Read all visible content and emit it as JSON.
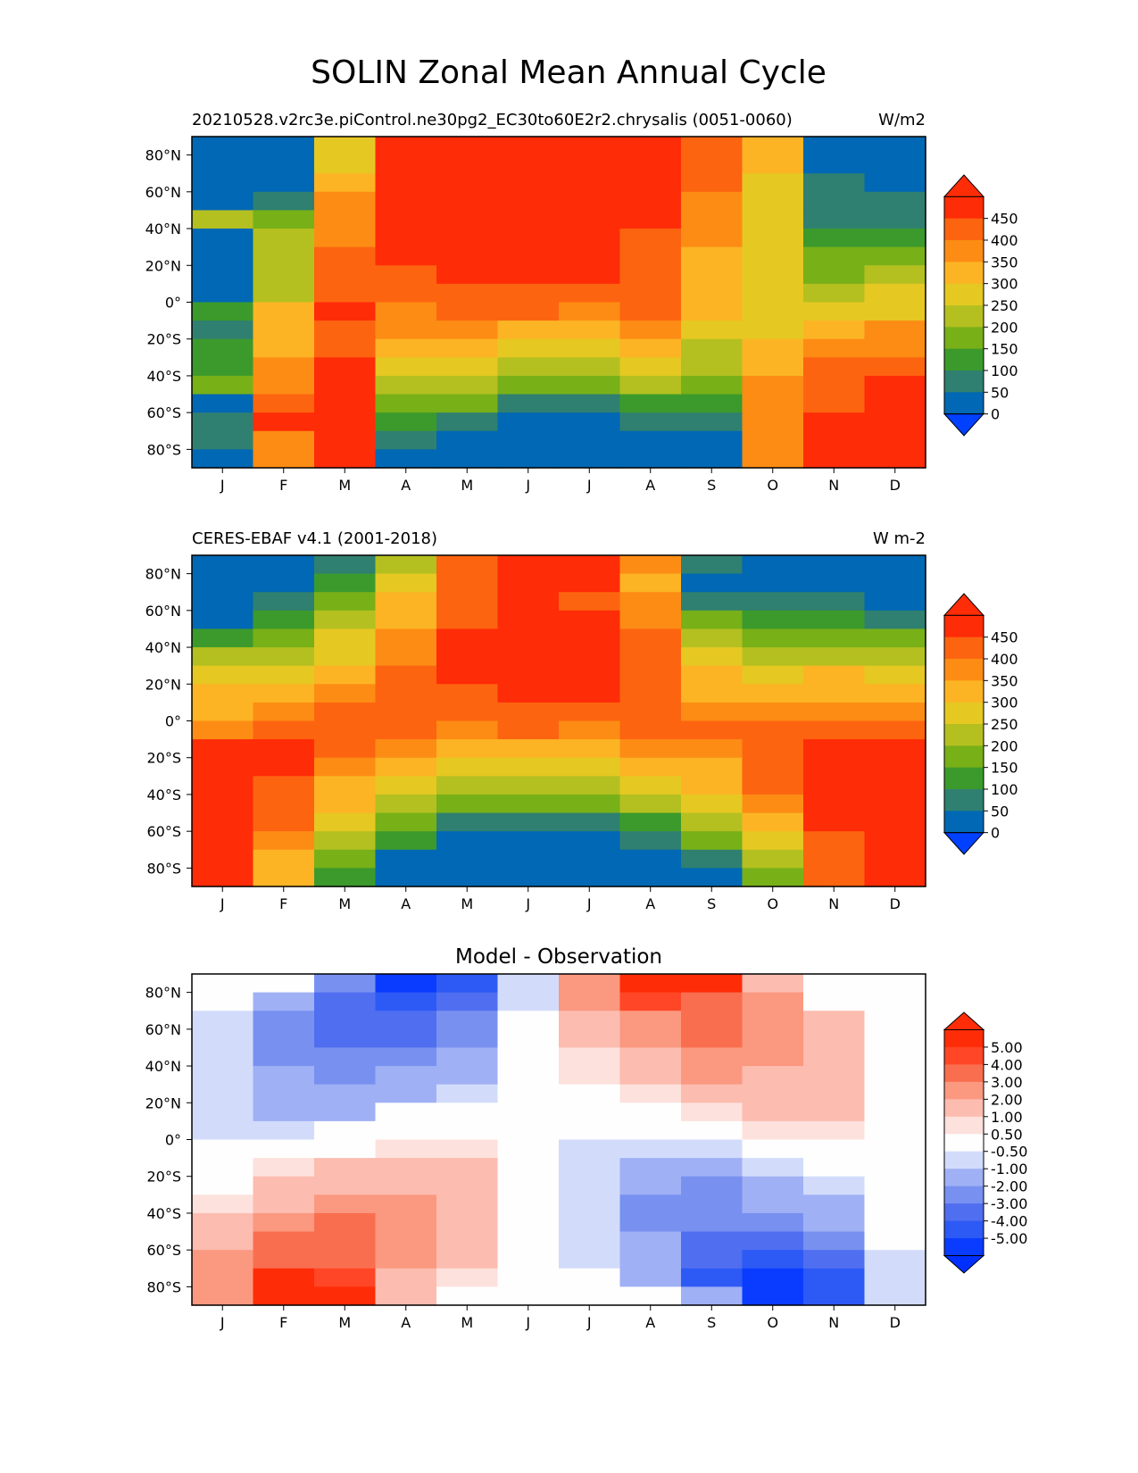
{
  "figure_title": "SOLIN Zonal Mean Annual Cycle",
  "chart_data": [
    {
      "type": "heatmap",
      "title": "",
      "left_title": "20210528.v2rc3e.piControl.ne30pg2_EC30to60E2r2.chrysalis (0051-0060)",
      "right_title": "W/m2",
      "x_ticks": [
        "J",
        "F",
        "M",
        "A",
        "M",
        "J",
        "J",
        "A",
        "S",
        "O",
        "N",
        "D"
      ],
      "y_ticks": [
        "80°N",
        "60°N",
        "40°N",
        "20°N",
        "0°",
        "20°S",
        "40°S",
        "60°S",
        "80°S"
      ],
      "y_tick_values": [
        80,
        60,
        40,
        20,
        0,
        -20,
        -40,
        -60,
        -80
      ],
      "ylim": [
        -90,
        90
      ],
      "colorbar": {
        "levels": [
          0,
          50,
          100,
          150,
          200,
          250,
          300,
          350,
          400,
          450,
          500
        ],
        "tick_labels": [
          "0",
          "50",
          "100",
          "150",
          "200",
          "250",
          "300",
          "350",
          "400",
          "450"
        ],
        "tick_values": [
          0,
          50,
          100,
          150,
          200,
          250,
          300,
          350,
          400,
          450
        ],
        "colors": [
          "#0068b4",
          "#2f8070",
          "#3c9a2c",
          "#78b018",
          "#b4c020",
          "#e6c822",
          "#fcb424",
          "#fd8c14",
          "#fd6410",
          "#ff2c08"
        ],
        "under_color": "#0040ff",
        "over_color": "#ff2c08",
        "extend": "both"
      },
      "values_by_month_lat": {
        "latitudes": [
          85,
          75,
          65,
          55,
          45,
          35,
          25,
          15,
          5,
          -5,
          -15,
          -25,
          -35,
          -45,
          -55,
          -65,
          -75,
          -85
        ],
        "data": [
          [
            0,
            0,
            0,
            35,
            240,
            24,
            0,
            0,
            0,
            110,
            60,
            140,
            100,
            180,
            45,
            60,
            80,
            30
          ],
          [
            0,
            0,
            0,
            90,
            180,
            210,
            220,
            240,
            230,
            320,
            300,
            330,
            370,
            380,
            410,
            470,
            390,
            350
          ],
          [
            260,
            280,
            310,
            380,
            370,
            390,
            400,
            420,
            430,
            460,
            440,
            440,
            470,
            470,
            480,
            480,
            480,
            490
          ],
          [
            480,
            470,
            460,
            460,
            470,
            480,
            470,
            440,
            420,
            390,
            360,
            310,
            280,
            240,
            190,
            130,
            70,
            10
          ],
          [
            480,
            480,
            480,
            480,
            490,
            490,
            480,
            460,
            430,
            420,
            380,
            340,
            290,
            230,
            170,
            80,
            10,
            0
          ],
          [
            500,
            500,
            480,
            480,
            490,
            480,
            470,
            460,
            440,
            400,
            340,
            290,
            230,
            160,
            90,
            0,
            0,
            0
          ],
          [
            500,
            500,
            490,
            490,
            490,
            480,
            460,
            450,
            420,
            390,
            340,
            280,
            220,
            150,
            80,
            0,
            0,
            0
          ],
          [
            480,
            480,
            470,
            460,
            450,
            440,
            440,
            440,
            430,
            400,
            360,
            320,
            260,
            200,
            130,
            60,
            0,
            0
          ],
          [
            440,
            440,
            400,
            380,
            360,
            360,
            340,
            330,
            320,
            310,
            290,
            230,
            200,
            160,
            110,
            55,
            20,
            0
          ],
          [
            310,
            300,
            290,
            280,
            270,
            260,
            250,
            260,
            270,
            280,
            290,
            310,
            340,
            350,
            360,
            370,
            380,
            370
          ],
          [
            30,
            30,
            60,
            60,
            90,
            120,
            150,
            180,
            220,
            270,
            320,
            380,
            400,
            420,
            440,
            460,
            480,
            480
          ],
          [
            0,
            0,
            0,
            60,
            90,
            130,
            160,
            210,
            250,
            290,
            350,
            390,
            420,
            450,
            480,
            500,
            500,
            520
          ]
        ]
      }
    },
    {
      "type": "heatmap",
      "title": "",
      "left_title": "CERES-EBAF v4.1 (2001-2018)",
      "right_title": "W m-2",
      "x_ticks": [
        "J",
        "F",
        "M",
        "A",
        "M",
        "J",
        "J",
        "A",
        "S",
        "O",
        "N",
        "D"
      ],
      "y_ticks": [
        "80°N",
        "60°N",
        "40°N",
        "20°N",
        "0°",
        "20°S",
        "40°S",
        "60°S",
        "80°S"
      ],
      "y_tick_values": [
        80,
        60,
        40,
        20,
        0,
        -20,
        -40,
        -60,
        -80
      ],
      "ylim": [
        -90,
        90
      ],
      "colorbar": {
        "levels": [
          0,
          50,
          100,
          150,
          200,
          250,
          300,
          350,
          400,
          450,
          500
        ],
        "tick_labels": [
          "0",
          "50",
          "100",
          "150",
          "200",
          "250",
          "300",
          "350",
          "400",
          "450"
        ],
        "tick_values": [
          0,
          50,
          100,
          150,
          200,
          250,
          300,
          350,
          400,
          450
        ],
        "colors": [
          "#0068b4",
          "#2f8070",
          "#3c9a2c",
          "#78b018",
          "#b4c020",
          "#e6c822",
          "#fcb424",
          "#fd8c14",
          "#fd6410",
          "#ff2c08"
        ],
        "under_color": "#0040ff",
        "over_color": "#ff2c08",
        "extend": "both"
      },
      "values_by_month_lat": {
        "latitudes": [
          85,
          75,
          65,
          55,
          45,
          35,
          25,
          15,
          5,
          -5,
          -15,
          -25,
          -35,
          -45,
          -55,
          -65,
          -75,
          -85
        ],
        "data": [
          [
            0,
            0,
            0,
            35,
            140,
            240,
            250,
            300,
            340,
            390,
            460,
            470,
            470,
            480,
            490,
            500,
            510,
            520
          ],
          [
            0,
            0,
            80,
            110,
            160,
            210,
            260,
            300,
            350,
            400,
            460,
            470,
            430,
            420,
            410,
            370,
            330,
            340
          ],
          [
            90,
            130,
            170,
            210,
            250,
            290,
            330,
            360,
            400,
            410,
            420,
            380,
            340,
            310,
            260,
            210,
            150,
            100
          ],
          [
            240,
            280,
            310,
            340,
            370,
            390,
            400,
            410,
            420,
            410,
            370,
            330,
            280,
            230,
            180,
            110,
            40,
            20
          ],
          [
            430,
            410,
            400,
            400,
            460,
            470,
            450,
            430,
            420,
            380,
            330,
            280,
            210,
            150,
            80,
            0,
            0,
            0
          ],
          [
            500,
            500,
            480,
            480,
            490,
            480,
            470,
            460,
            440,
            400,
            340,
            290,
            230,
            160,
            90,
            0,
            0,
            0
          ],
          [
            500,
            490,
            420,
            480,
            490,
            480,
            470,
            450,
            420,
            390,
            340,
            280,
            220,
            150,
            80,
            0,
            0,
            0
          ],
          [
            350,
            320,
            360,
            380,
            410,
            430,
            440,
            440,
            430,
            400,
            360,
            320,
            260,
            200,
            130,
            60,
            0,
            0
          ],
          [
            60,
            40,
            80,
            150,
            230,
            290,
            320,
            340,
            390,
            420,
            350,
            340,
            310,
            270,
            220,
            150,
            70,
            10
          ],
          [
            0,
            0,
            80,
            120,
            170,
            230,
            290,
            340,
            390,
            410,
            430,
            420,
            400,
            370,
            320,
            250,
            200,
            180
          ],
          [
            0,
            10,
            60,
            120,
            170,
            240,
            300,
            340,
            370,
            410,
            470,
            470,
            490,
            480,
            470,
            420,
            400,
            400
          ],
          [
            0,
            0,
            30,
            90,
            150,
            210,
            250,
            320,
            360,
            410,
            470,
            490,
            500,
            500,
            510,
            500,
            500,
            500
          ]
        ]
      }
    },
    {
      "type": "heatmap",
      "title": "Model - Observation",
      "left_title": "",
      "right_title": "",
      "x_ticks": [
        "J",
        "F",
        "M",
        "A",
        "M",
        "J",
        "J",
        "A",
        "S",
        "O",
        "N",
        "D"
      ],
      "y_ticks": [
        "80°N",
        "60°N",
        "40°N",
        "20°N",
        "0°",
        "20°S",
        "40°S",
        "60°S",
        "80°S"
      ],
      "y_tick_values": [
        80,
        60,
        40,
        20,
        0,
        -20,
        -40,
        -60,
        -80
      ],
      "ylim": [
        -90,
        90
      ],
      "colorbar": {
        "levels": [
          -6,
          -5,
          -4,
          -3,
          -2,
          -1,
          -0.5,
          0.5,
          1,
          2,
          3,
          4,
          5,
          6
        ],
        "tick_labels": [
          "-5.00",
          "-4.00",
          "-3.00",
          "-2.00",
          "-1.00",
          "-0.50",
          "0.50",
          "1.00",
          "2.00",
          "3.00",
          "4.00",
          "5.00"
        ],
        "tick_values": [
          -5,
          -4,
          -3,
          -2,
          -1,
          -0.5,
          0.5,
          1,
          2,
          3,
          4,
          5
        ],
        "colors": [
          "#0a3cff",
          "#2d5af5",
          "#506ef0",
          "#7891f0",
          "#a0b0f5",
          "#d2dcfa",
          "#fefefe",
          "#fde1dc",
          "#fcbcaf",
          "#fb9880",
          "#fa6e50",
          "#ff4626",
          "#ff2c08"
        ],
        "under_color": "#0030ff",
        "over_color": "#ff2c08",
        "extend": "both"
      },
      "values_by_month_lat": {
        "latitudes": [
          85,
          75,
          65,
          55,
          45,
          35,
          25,
          15,
          5,
          -5,
          -15,
          -25,
          -35,
          -45,
          -55,
          -65,
          -75,
          -85
        ],
        "data": [
          [
            0,
            0,
            -0.7,
            -0.7,
            -0.7,
            -0.7,
            -0.7,
            -0.7,
            -0.7,
            0,
            0,
            0,
            0.8,
            1.2,
            1.5,
            2.2,
            2.2,
            2.2
          ],
          [
            0,
            -1.2,
            -2.2,
            -2.2,
            -2.2,
            -1.5,
            -1.2,
            -1.2,
            -0.7,
            0,
            0.7,
            1.5,
            1.5,
            2.2,
            3.2,
            3.2,
            5.5,
            5.5
          ],
          [
            -2.5,
            -3.5,
            -3.5,
            -3.5,
            -2.5,
            -2.5,
            -1.2,
            -1.2,
            0,
            0,
            1.5,
            1.5,
            2.5,
            3.2,
            3.2,
            3.5,
            4.5,
            5.5
          ],
          [
            -5.5,
            -4.5,
            -3.5,
            -3.5,
            -2.5,
            -1.5,
            -1.2,
            0,
            0,
            0.7,
            1.5,
            1.8,
            2.5,
            2.5,
            2.5,
            2.5,
            1.2,
            1.2
          ],
          [
            -4.5,
            -3.5,
            -2.5,
            -2.5,
            -1.5,
            -1.5,
            -0.7,
            0,
            0,
            0.7,
            1.5,
            1.5,
            1.5,
            1.5,
            1.5,
            1.5,
            0.7,
            0
          ],
          [
            -0.7,
            -0.7,
            0,
            0,
            0,
            0,
            0,
            0,
            0,
            0,
            0,
            0,
            0,
            0,
            0,
            0,
            0,
            0
          ],
          [
            2.5,
            2.5,
            1.5,
            1.5,
            0.7,
            0.7,
            0,
            0,
            0,
            -0.7,
            -0.7,
            -0.7,
            -0.7,
            -0.7,
            -0.7,
            -0.7,
            0,
            0
          ],
          [
            5.5,
            4.5,
            2.5,
            2.5,
            1.5,
            1.5,
            0.8,
            0,
            0,
            -0.7,
            -1.2,
            -1.2,
            -2.2,
            -2.5,
            -1.2,
            -1.2,
            -1.2,
            0
          ],
          [
            5.5,
            3.5,
            3.5,
            3.5,
            2.5,
            2.5,
            1.2,
            0.7,
            0,
            -0.7,
            -1.5,
            -2.2,
            -2.5,
            -2.5,
            -3.2,
            -3.5,
            -4.5,
            -1.2
          ],
          [
            1.2,
            2.5,
            2.5,
            2.5,
            2.5,
            1.5,
            1.5,
            1.5,
            0.7,
            0,
            -0.7,
            -1.5,
            -1.5,
            -2.2,
            -3.5,
            -4.5,
            -5.5,
            -6
          ],
          [
            0,
            0,
            1.5,
            1.5,
            1.5,
            1.5,
            1.5,
            1.5,
            0.7,
            0,
            0,
            -0.7,
            -1.5,
            -1.5,
            -2.2,
            -3.5,
            -4.5,
            -4.5
          ],
          [
            0,
            0,
            0,
            0,
            0,
            0,
            0,
            0,
            0,
            0,
            0,
            0,
            0,
            0,
            0,
            -0.7,
            -0.7,
            -0.7
          ]
        ]
      }
    }
  ]
}
